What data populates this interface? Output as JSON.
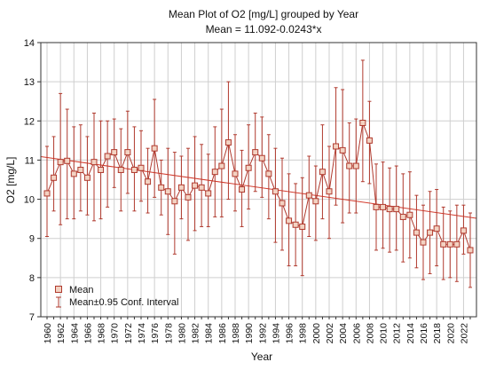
{
  "chart_data": {
    "type": "line",
    "title": "Mean Plot of O2 [mg/L] grouped by  Year",
    "subtitle": "Mean = 11.092-0.0243*x",
    "xlabel": "Year",
    "ylabel": "O2 [mg/L]",
    "ylim": [
      7,
      14
    ],
    "yticks": [
      7,
      8,
      9,
      10,
      11,
      12,
      13,
      14
    ],
    "xtick_labels": [
      "1960",
      "1962",
      "1964",
      "1966",
      "1968",
      "1970",
      "1972",
      "1974",
      "1976",
      "1978",
      "1980",
      "1982",
      "1984",
      "1986",
      "1988",
      "1990",
      "1992",
      "1994",
      "1996",
      "1998",
      "2000",
      "2002",
      "2004",
      "2006",
      "2008",
      "2010",
      "2012",
      "2014",
      "2016",
      "2018",
      "2020",
      "2022"
    ],
    "grid": true,
    "legend_position": "bottom-left",
    "legend": [
      "Mean",
      "Mean±0.95 Conf. Interval"
    ],
    "regression": {
      "intercept": 11.092,
      "slope": -0.0243
    },
    "colors": {
      "series": "#b03a2e",
      "marker_face": "#f3d2c2",
      "regression": "#d33a2c",
      "grid": "#cfcfcf",
      "axis": "#333333"
    },
    "series": [
      {
        "years": [
          1960,
          1961,
          1962,
          1963,
          1964,
          1965,
          1966,
          1967,
          1968,
          1969,
          1970,
          1971,
          1972,
          1973,
          1974,
          1975,
          1976,
          1977,
          1978,
          1979,
          1980,
          1981,
          1982,
          1983,
          1984,
          1985,
          1986,
          1987,
          1988,
          1989,
          1990,
          1991,
          1992,
          1993,
          1994,
          1995,
          1996,
          1997,
          1998,
          1999,
          2000,
          2001,
          2002,
          2003,
          2004,
          2005,
          2006,
          2007,
          2008,
          2009,
          2010,
          2011,
          2012,
          2013,
          2014,
          2015,
          2016,
          2017,
          2018,
          2019,
          2020,
          2021,
          2022,
          2023
        ],
        "values": [
          10.15,
          10.55,
          10.95,
          10.98,
          10.65,
          10.75,
          10.55,
          10.95,
          10.75,
          11.1,
          11.2,
          10.75,
          11.2,
          10.75,
          10.8,
          10.45,
          11.3,
          10.3,
          10.2,
          9.95,
          10.3,
          10.05,
          10.35,
          10.3,
          10.15,
          10.7,
          10.85,
          11.45,
          10.65,
          10.25,
          10.8,
          11.2,
          11.05,
          10.65,
          10.2,
          9.9,
          9.45,
          9.35,
          9.3,
          10.1,
          9.95,
          10.7,
          10.2,
          11.35,
          11.25,
          10.85,
          10.85,
          11.95,
          11.5,
          9.8,
          9.8,
          9.75,
          9.75,
          9.55,
          9.6,
          9.15,
          8.9,
          9.15,
          9.25,
          8.85,
          8.85,
          8.85,
          9.2,
          8.7
        ],
        "ci_low": [
          9.05,
          9.7,
          9.35,
          9.5,
          9.5,
          9.7,
          9.6,
          9.45,
          9.5,
          9.8,
          10.3,
          9.7,
          10.15,
          9.7,
          9.95,
          9.65,
          10.05,
          9.6,
          9.1,
          8.6,
          9.5,
          8.95,
          9.2,
          9.3,
          9.3,
          9.55,
          9.55,
          10.0,
          9.7,
          9.3,
          9.75,
          10.2,
          10.05,
          9.5,
          8.9,
          8.7,
          8.3,
          8.3,
          8.05,
          9.05,
          8.95,
          9.5,
          9.0,
          9.85,
          9.4,
          9.65,
          9.65,
          10.45,
          10.4,
          8.7,
          8.75,
          8.65,
          8.7,
          8.4,
          8.5,
          8.25,
          7.95,
          8.1,
          8.3,
          7.95,
          8.0,
          7.9,
          8.6,
          7.75
        ],
        "ci_high": [
          11.35,
          11.6,
          12.7,
          12.3,
          11.85,
          11.9,
          11.6,
          12.2,
          12.0,
          12.0,
          12.05,
          11.8,
          12.25,
          11.85,
          11.75,
          11.3,
          12.55,
          11.0,
          11.3,
          11.2,
          11.1,
          11.3,
          11.6,
          11.4,
          11.15,
          11.85,
          12.3,
          13.0,
          11.65,
          11.25,
          11.9,
          12.2,
          12.1,
          11.65,
          11.3,
          11.05,
          10.65,
          10.4,
          10.55,
          11.1,
          10.85,
          11.9,
          11.35,
          12.85,
          12.8,
          11.95,
          12.05,
          13.55,
          12.5,
          10.9,
          10.95,
          10.8,
          10.85,
          10.65,
          10.7,
          10.1,
          9.85,
          10.2,
          10.25,
          9.8,
          9.7,
          9.85,
          9.85,
          9.65
        ]
      }
    ]
  }
}
